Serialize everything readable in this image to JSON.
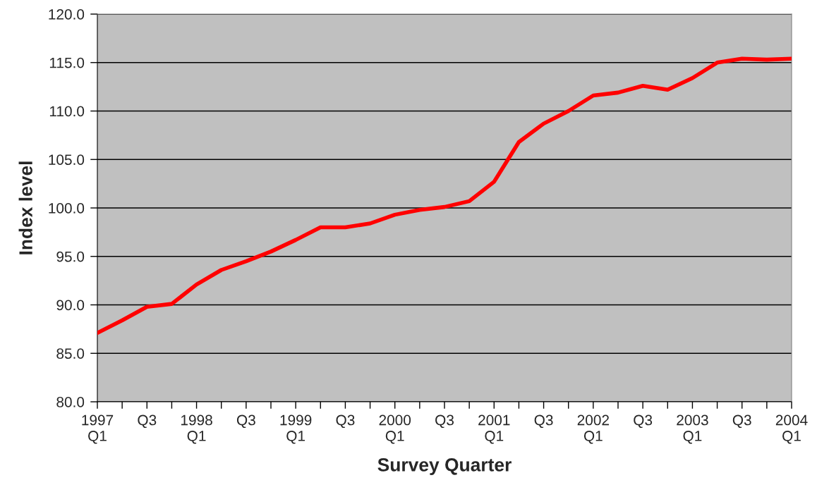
{
  "chart_data": {
    "type": "line",
    "xlabel": "Survey Quarter",
    "ylabel": "Index level",
    "categories": [
      "1997\nQ1",
      null,
      "Q3",
      null,
      "1998\nQ1",
      null,
      "Q3",
      null,
      "1999\nQ1",
      null,
      "Q3",
      null,
      "2000\nQ1",
      null,
      "Q3",
      null,
      "2001\nQ1",
      null,
      "Q3",
      null,
      "2002\nQ1",
      null,
      "Q3",
      null,
      "2003\nQ1",
      null,
      "Q3",
      null,
      "2004\nQ1"
    ],
    "series": [
      {
        "color": "#ff0000",
        "values": [
          87.1,
          88.4,
          89.8,
          90.1,
          92.1,
          93.6,
          94.5,
          95.5,
          96.7,
          98.0,
          98.0,
          98.4,
          99.3,
          99.8,
          100.1,
          100.7,
          102.7,
          106.8,
          108.7,
          110.0,
          111.6,
          111.9,
          112.6,
          112.2,
          113.4,
          115.0,
          115.4,
          115.3,
          115.4
        ]
      }
    ],
    "ylim": [
      80,
      120
    ],
    "yticks": [
      {
        "value": 80,
        "label": "80.0"
      },
      {
        "value": 85,
        "label": "85.0"
      },
      {
        "value": 90,
        "label": "90.0"
      },
      {
        "value": 95,
        "label": "95.0"
      },
      {
        "value": 100,
        "label": "100.0"
      },
      {
        "value": 105,
        "label": "105.0"
      },
      {
        "value": 110,
        "label": "110.0"
      },
      {
        "value": 115,
        "label": "115.0"
      },
      {
        "value": 120,
        "label": "120.0"
      }
    ],
    "grid": "y",
    "marker": "none",
    "line_style": "solid"
  }
}
